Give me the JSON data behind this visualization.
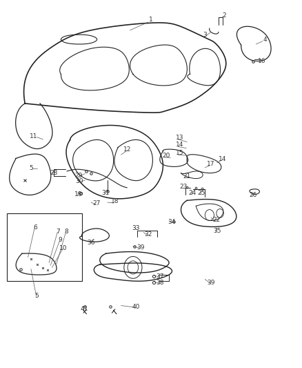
{
  "bg_color": "#ffffff",
  "line_color": "#222222",
  "label_color": "#333333",
  "fig_width": 4.38,
  "fig_height": 5.33,
  "dpi": 100
}
